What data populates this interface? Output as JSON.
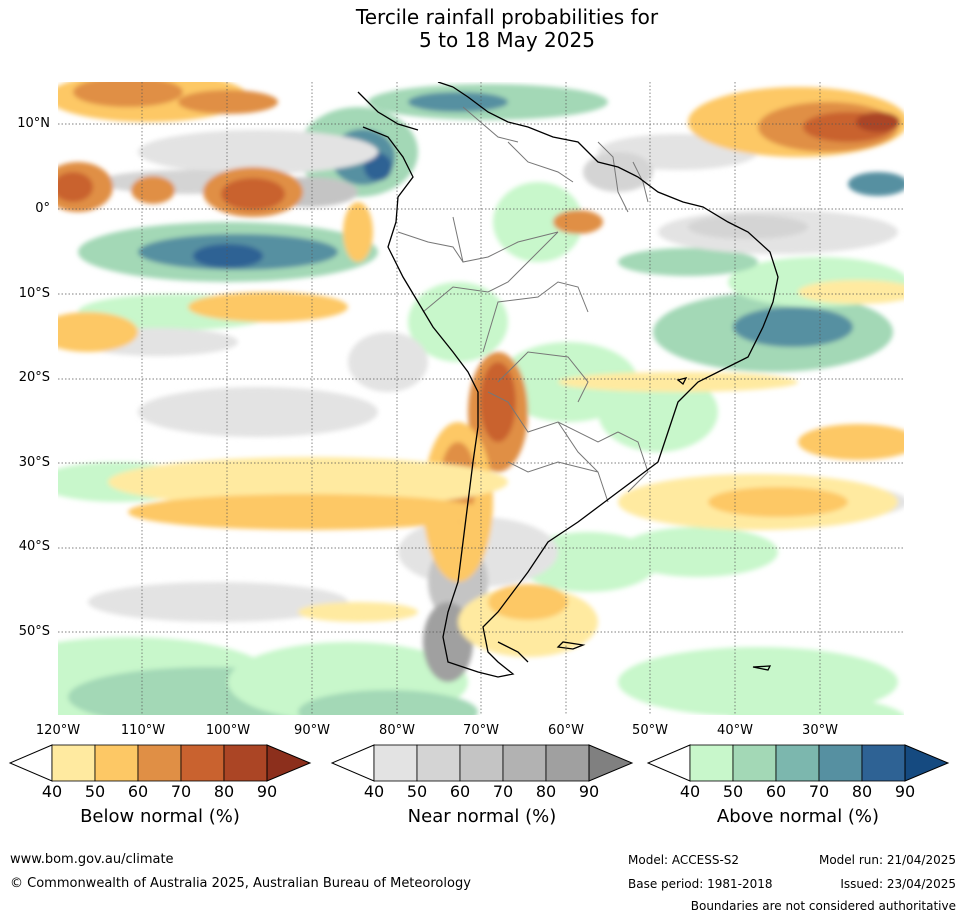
{
  "title": {
    "line1": "Tercile rainfall probabilities for",
    "line2": "5 to 18 May 2025"
  },
  "map": {
    "lat_labels": [
      "10°N",
      "0°",
      "10°S",
      "20°S",
      "30°S",
      "40°S",
      "50°S"
    ],
    "lon_labels": [
      "120°W",
      "110°W",
      "100°W",
      "90°W",
      "80°W",
      "70°W",
      "60°W",
      "50°W",
      "40°W",
      "30°W"
    ]
  },
  "colorbars": [
    {
      "title": "Below normal (%)",
      "ticks": [
        "40",
        "50",
        "60",
        "70",
        "80",
        "90"
      ],
      "colors": [
        "#ffeaa0",
        "#fdc865",
        "#e08f45",
        "#c9622f",
        "#ab4525",
        "#8c2f1c"
      ]
    },
    {
      "title": "Near normal (%)",
      "ticks": [
        "40",
        "50",
        "60",
        "70",
        "80",
        "90"
      ],
      "colors": [
        "#e3e3e3",
        "#d4d4d4",
        "#c4c4c4",
        "#b2b2b2",
        "#a0a0a0",
        "#808080"
      ]
    },
    {
      "title": "Above normal (%)",
      "ticks": [
        "40",
        "50",
        "60",
        "70",
        "80",
        "90"
      ],
      "colors": [
        "#c8f7cb",
        "#a3d8b6",
        "#7cb7ae",
        "#5690a1",
        "#2e6294",
        "#154a80"
      ]
    }
  ],
  "footer": {
    "website": "www.bom.gov.au/climate",
    "copyright": "© Commonwealth of Australia 2025, Australian Bureau of Meteorology",
    "model": "Model: ACCESS-S2",
    "base_period": "Base period: 1981-2018",
    "model_run": "Model run: 21/04/2025",
    "issued": "Issued: 23/04/2025",
    "disclaimer": "Boundaries are not considered authoritative"
  }
}
